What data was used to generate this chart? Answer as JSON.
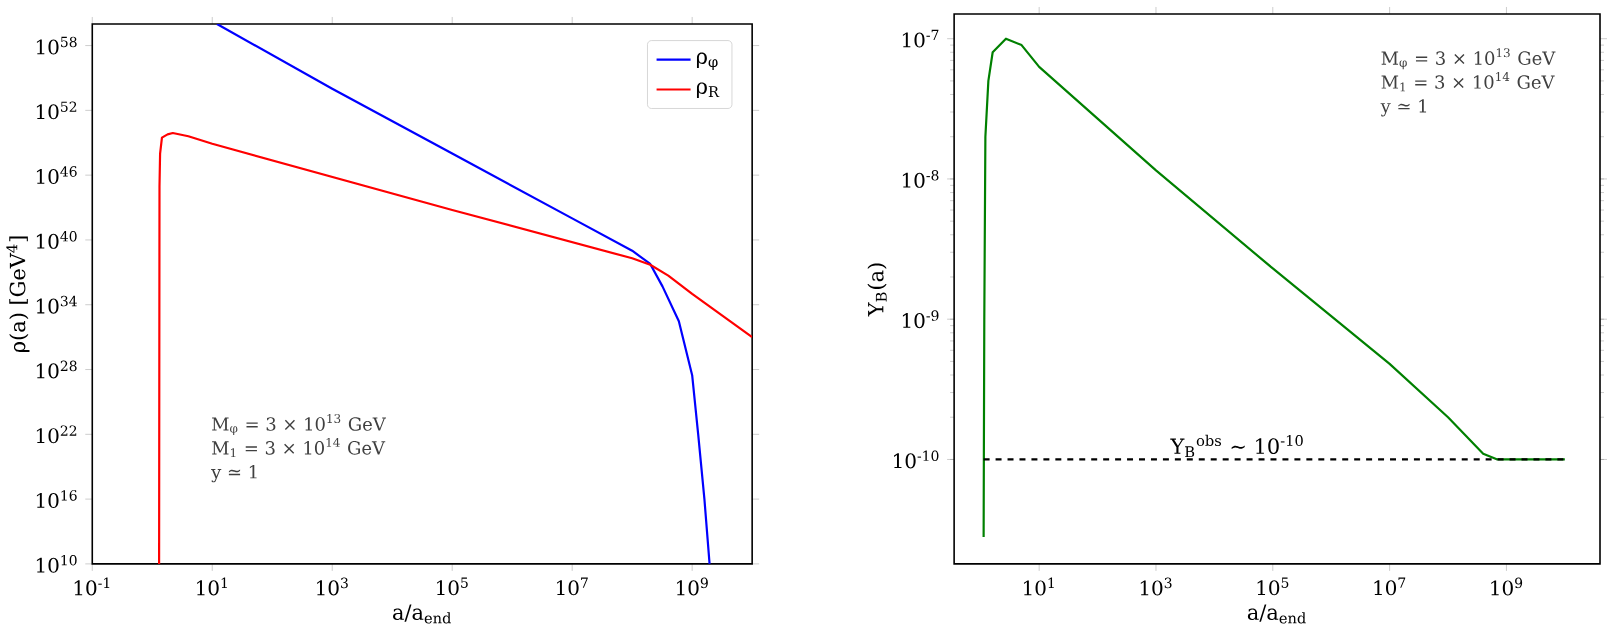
{
  "chart_data": [
    {
      "type": "line",
      "xlabel": "a/a$_{end}$",
      "ylabel": "ρ(a) [GeV$^{4}$]",
      "log": "xy",
      "legend": "top right",
      "xlim": [
        0.1,
        10000000000.0
      ],
      "ylim": [
        10000000000.0,
        1e+60
      ],
      "xticks": [
        {
          "value": 0.1,
          "label": "10$^{-1}$"
        },
        {
          "value": 10,
          "label": "10$^{1}$"
        },
        {
          "value": 1000.0,
          "label": "10$^{3}$"
        },
        {
          "value": 100000.0,
          "label": "10$^{5}$"
        },
        {
          "value": 10000000.0,
          "label": "10$^{7}$"
        },
        {
          "value": 1000000000.0,
          "label": "10$^{9}$"
        }
      ],
      "yticks": [
        {
          "value": 10000000000.0,
          "label": "10$^{10}$"
        },
        {
          "value": 1e+16,
          "label": "10$^{16}$"
        },
        {
          "value": 1e+22,
          "label": "10$^{22}$"
        },
        {
          "value": 1e+28,
          "label": "10$^{28}$"
        },
        {
          "value": 1e+34,
          "label": "10$^{34}$"
        },
        {
          "value": 1e+40,
          "label": "10$^{40}$"
        },
        {
          "value": 1e+46,
          "label": "10$^{46}$"
        },
        {
          "value": 1e+52,
          "label": "10$^{52}$"
        },
        {
          "value": 1e+58,
          "label": "10$^{58}$"
        }
      ],
      "series": [
        {
          "name": "ρ$_{φ}$",
          "color": "#0000ff",
          "x": [
            12,
            1000.0,
            100000.0,
            10000000.0,
            100000000.0,
            200000000.0,
            320000000.0,
            600000000.0,
            1000000000.0,
            1260000000.0,
            1600000000.0,
            1950000000.0
          ],
          "values": [
            1e+60,
            1e+54,
            1e+48,
            1e+42,
            1e+39,
            6e+37,
            5e+35,
            3e+32,
            3e+27,
            1e+22,
            1e+16,
            10000000000.0
          ]
        },
        {
          "name": "ρ$_{R}$",
          "color": "#ff0000",
          "x": [
            1.3,
            1.32,
            1.35,
            1.45,
            1.8,
            2.2,
            4,
            10,
            100000.0,
            100000000.0,
            200000000.0,
            400000000.0,
            1000000000.0,
            10000000000.0
          ],
          "values": [
            10000000000.0,
            1e+45,
            1e+48,
            3e+49,
            6e+49,
            8e+49,
            4e+49,
            8e+48,
            6e+42,
            2e+38,
            5e+37,
            5e+36,
            1e+35,
            1e+31
          ]
        }
      ],
      "annotations": [
        "M$_{φ}$ = 3 × 10$^{13}$ GeV",
        "M$_{1}$ = 3 × 10$^{14}$ GeV",
        "y ≃ 1"
      ]
    },
    {
      "type": "line",
      "xlabel": "a/a$_{end}$",
      "ylabel": "Y$_{B}$(a)",
      "log": "xy",
      "xlim": [
        0.35,
        40000000000.0
      ],
      "ylim": [
        1.8e-11,
        1.5e-07
      ],
      "xticks": [
        {
          "value": 10,
          "label": "10$^{1}$"
        },
        {
          "value": 1000.0,
          "label": "10$^{3}$"
        },
        {
          "value": 100000.0,
          "label": "10$^{5}$"
        },
        {
          "value": 10000000.0,
          "label": "10$^{7}$"
        },
        {
          "value": 1000000000.0,
          "label": "10$^{9}$"
        }
      ],
      "yticks": [
        {
          "value": 1e-10,
          "label": "10$^{-10}$"
        },
        {
          "value": 1e-09,
          "label": "10$^{-9}$"
        },
        {
          "value": 1e-08,
          "label": "10$^{-8}$"
        },
        {
          "value": 1e-07,
          "label": "10$^{-7}$"
        }
      ],
      "series": [
        {
          "color": "#008000",
          "x": [
            1.12,
            1.13,
            1.15,
            1.2,
            1.35,
            1.6,
            2.7,
            5,
            10,
            1000.0,
            100000.0,
            10000000.0,
            100000000.0,
            400000000.0,
            700000000.0,
            10000000000.0
          ],
          "values": [
            2.8e-11,
            1e-10,
            1e-09,
            2e-08,
            5e-08,
            8e-08,
            1e-07,
            9e-08,
            6.3e-08,
            1.15e-08,
            2.3e-09,
            4.8e-10,
            2e-10,
            1.1e-10,
            1e-10,
            1e-10
          ]
        },
        {
          "color": "#000000",
          "line_style": "dashed",
          "x": [
            1.12,
            10000000000.0
          ],
          "values": [
            1e-10,
            1e-10
          ]
        }
      ],
      "annotations": [
        {
          "text": "Y$_{B}$$^{obs}$ ∼ 10$^{-10}$",
          "x": 25000.0,
          "y": 1e-10
        },
        "M$_{φ}$ = 3 × 10$^{13}$ GeV",
        "M$_{1}$ = 3 × 10$^{14}$ GeV",
        "y ≃ 1"
      ]
    }
  ]
}
